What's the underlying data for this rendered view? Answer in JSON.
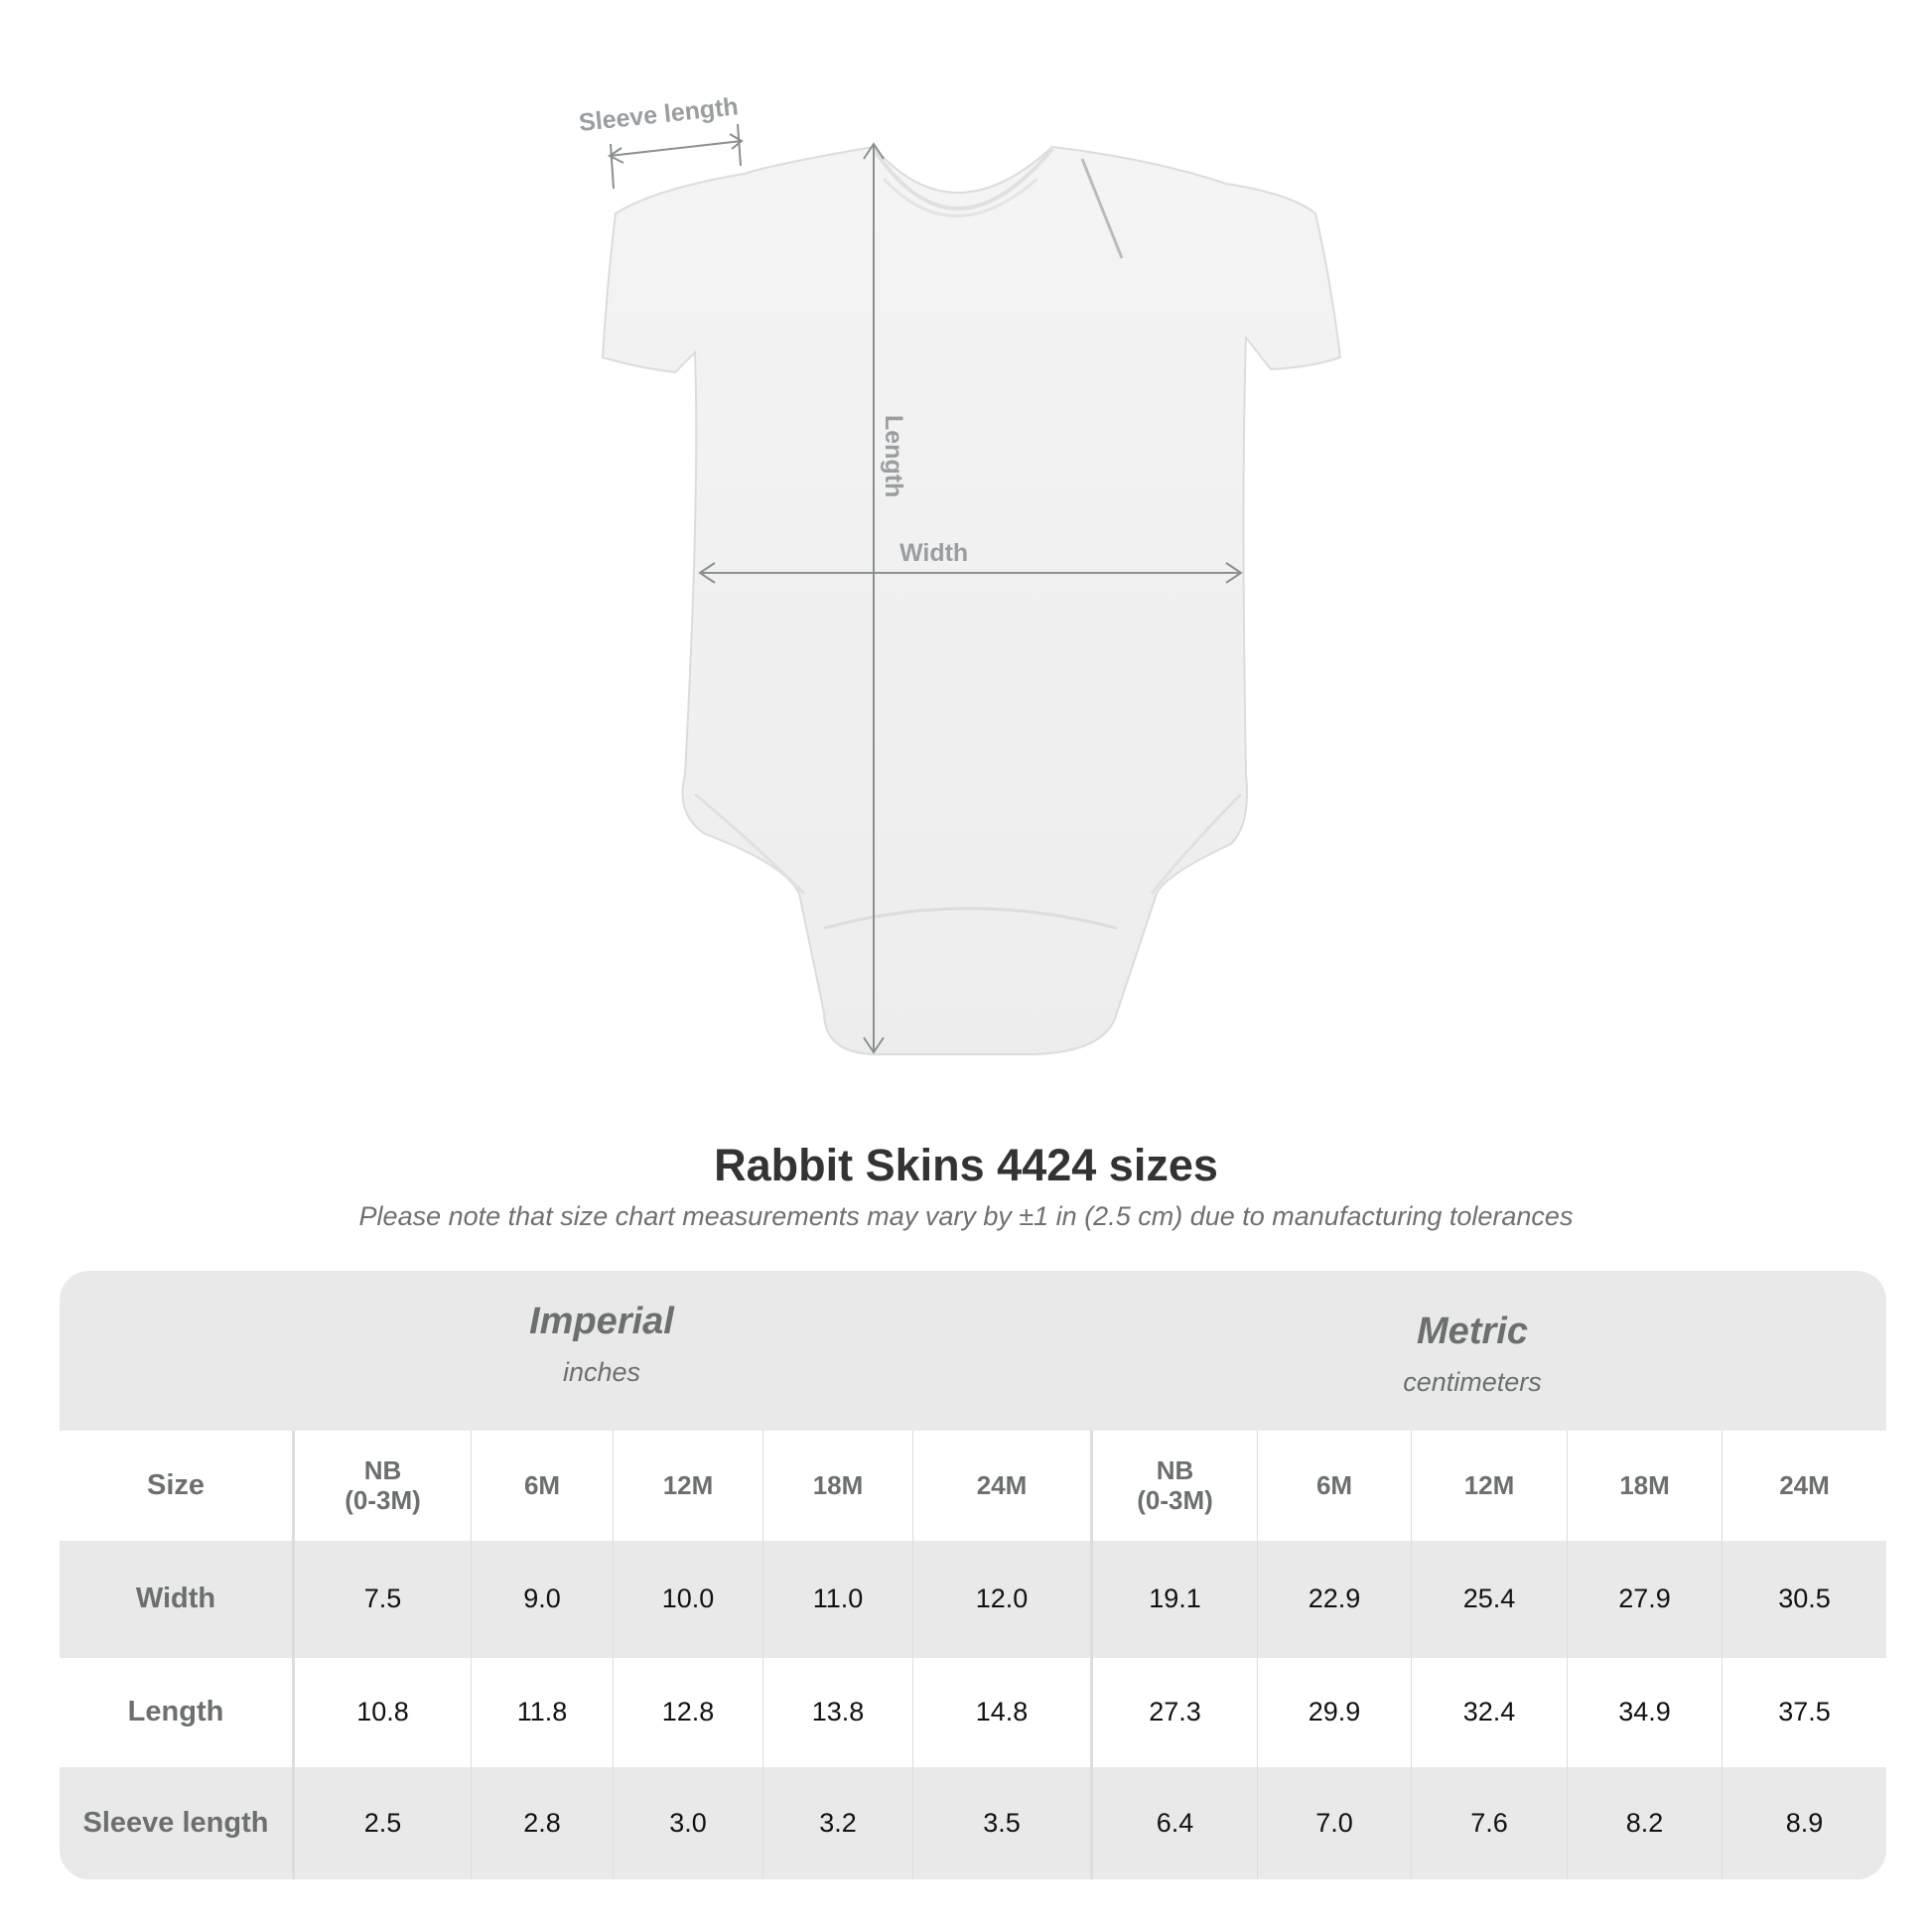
{
  "diagram": {
    "labels": {
      "sleeve": "Sleeve length",
      "length": "Length",
      "width": "Width"
    }
  },
  "title": "Rabbit Skins 4424 sizes",
  "subtitle": "Please note that size chart measurements may vary by ±1 in (2.5 cm) due to manufacturing tolerances",
  "table": {
    "imperial": {
      "heading": "Imperial",
      "unit": "inches"
    },
    "metric": {
      "heading": "Metric",
      "unit": "centimeters"
    },
    "size_label": "Size",
    "sizes": [
      "NB\n(0-3M)",
      "6M",
      "12M",
      "18M",
      "24M",
      "NB\n(0-3M)",
      "6M",
      "12M",
      "18M",
      "24M"
    ],
    "rows": [
      {
        "label": "Width",
        "values": [
          "7.5",
          "9.0",
          "10.0",
          "11.0",
          "12.0",
          "19.1",
          "22.9",
          "25.4",
          "27.9",
          "30.5"
        ]
      },
      {
        "label": "Length",
        "values": [
          "10.8",
          "11.8",
          "12.8",
          "13.8",
          "14.8",
          "27.3",
          "29.9",
          "32.4",
          "34.9",
          "37.5"
        ]
      },
      {
        "label": "Sleeve length",
        "values": [
          "2.5",
          "2.8",
          "3.0",
          "3.2",
          "3.5",
          "6.4",
          "7.0",
          "7.6",
          "8.2",
          "8.9"
        ]
      }
    ]
  },
  "colors": {
    "band": "#e9e9e9",
    "label": "#6b6f70",
    "arrow": "#8a8f91"
  }
}
